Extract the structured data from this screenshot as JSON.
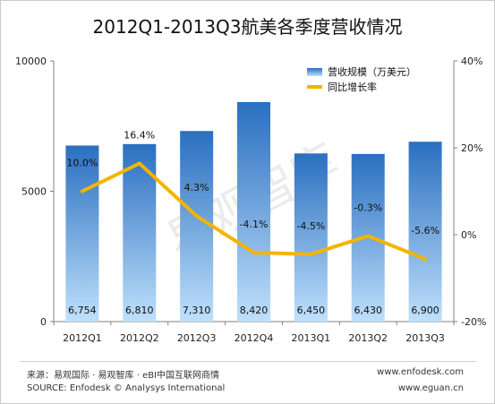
{
  "chart_data": {
    "type": "bar",
    "title": "2012Q1-2013Q3航美各季度营收情况",
    "categories": [
      "2012Q1",
      "2012Q2",
      "2012Q3",
      "2012Q4",
      "2013Q1",
      "2013Q2",
      "2013Q3"
    ],
    "series": [
      {
        "name": "营收规模（万美元）",
        "type": "bar",
        "axis": "left",
        "values": [
          6754,
          6810,
          7310,
          8420,
          6450,
          6430,
          6900
        ],
        "labels": [
          "6,754",
          "6,810",
          "7,310",
          "8,420",
          "6,450",
          "6,430",
          "6,900"
        ]
      },
      {
        "name": "同比增长率",
        "type": "line",
        "axis": "right",
        "values": [
          10.0,
          16.4,
          4.3,
          -4.1,
          -4.5,
          -0.3,
          -5.6
        ],
        "labels": [
          "10.0%",
          "16.4%",
          "4.3%",
          "-4.1%",
          "-4.5%",
          "-0.3%",
          "-5.6%"
        ]
      }
    ],
    "y_left": {
      "min": 0,
      "max": 10000,
      "ticks": [
        0,
        5000,
        10000
      ],
      "tick_labels": [
        "0",
        "5000",
        "10000"
      ]
    },
    "y_right": {
      "min": -20,
      "max": 40,
      "ticks": [
        -20,
        0,
        20,
        40
      ],
      "tick_labels": [
        "-20%",
        "0%",
        "20%",
        "40%"
      ]
    },
    "legend_position": "top-right",
    "grid": false,
    "colors": {
      "bar_top": "#2a6fc0",
      "bar_bottom": "#bfe0fb",
      "line": "#f4b400"
    }
  },
  "watermark": "易观智库",
  "footer": {
    "source_cn": "来源：易观国际 · 易观智库 · eBI中国互联网商情",
    "source_en": "SOURCE: Enfodesk © Analysys International",
    "site1": "www.enfodesk.com",
    "site2": "www.eguan.cn"
  }
}
